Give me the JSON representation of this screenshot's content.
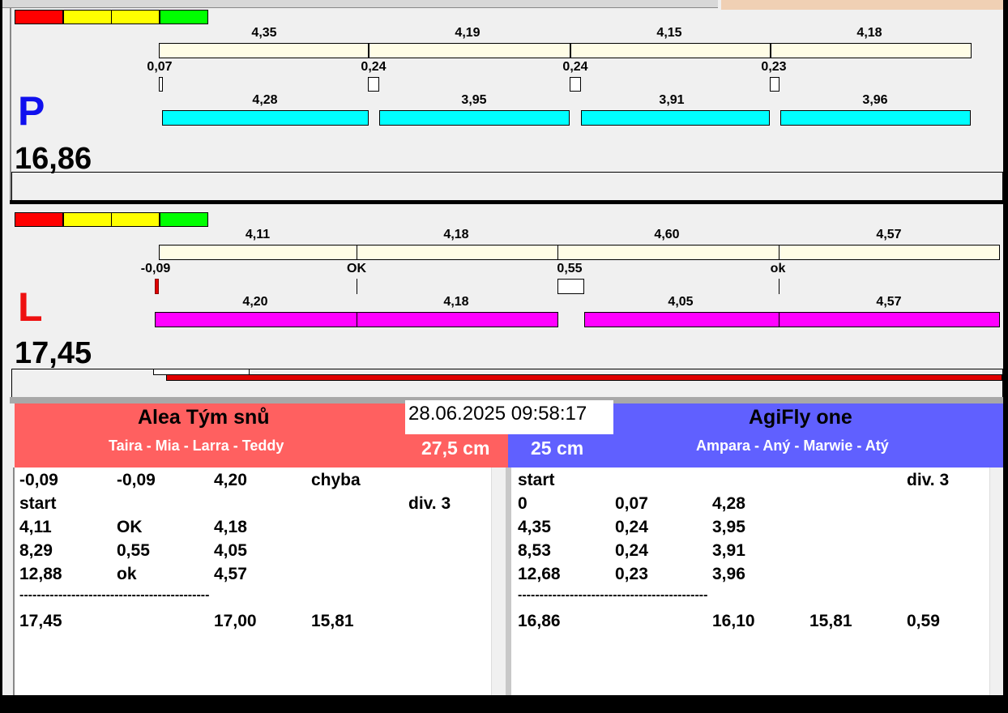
{
  "colors": {
    "red_team": "#ff6060",
    "blue_team": "#6060ff",
    "cyan": "#00ffff",
    "magenta": "#ff00ff",
    "track": "#fffde6",
    "peach": "#f0d0b4"
  },
  "signal_bar": [
    "red",
    "yellow",
    "yellow",
    "green"
  ],
  "p_lane": {
    "letter": "P",
    "total": "16,86",
    "top_labels": [
      "4,35",
      "4,19",
      "4,15",
      "4,18"
    ],
    "mid_labels": [
      "0,07",
      "0,24",
      "0,24",
      "0,23"
    ],
    "bottom_labels": [
      "4,28",
      "3,95",
      "3,91",
      "3,96"
    ]
  },
  "l_lane": {
    "letter": "L",
    "total": "17,45",
    "top_labels": [
      "4,11",
      "4,18",
      "4,60",
      "4,57"
    ],
    "mid_labels": [
      "-0,09",
      "OK",
      "0,55",
      "ok"
    ],
    "bottom_labels": [
      "4,20",
      "4,18",
      "4,05",
      "4,57"
    ]
  },
  "datetime": "28.06.2025 09:58:17",
  "left_team": {
    "name": "Alea Tým snů",
    "dogs": "Taira - Mia - Larra - Teddy",
    "height": "27,5 cm",
    "rows": [
      [
        "-0,09",
        "-0,09",
        "4,20",
        "chyba",
        ""
      ],
      [
        "start",
        "",
        "",
        "",
        "div.  3"
      ],
      [
        "4,11",
        "OK",
        "4,18",
        "",
        ""
      ],
      [
        "8,29",
        "0,55",
        "4,05",
        "",
        ""
      ],
      [
        "12,88",
        "ok",
        "4,57",
        "",
        ""
      ]
    ],
    "separator": "--------------------------------------------",
    "summary": [
      "17,45",
      "",
      "17,00",
      "15,81",
      ""
    ]
  },
  "right_team": {
    "name": "AgiFly one",
    "dogs": "Ampara - Aný - Marwie - Atý",
    "height": "25 cm",
    "rows": [
      [
        "start",
        "",
        "",
        "",
        "div.  3"
      ],
      [
        "0",
        "0,07",
        "4,28",
        "",
        ""
      ],
      [
        "4,35",
        "0,24",
        "3,95",
        "",
        ""
      ],
      [
        "8,53",
        "0,24",
        "3,91",
        "",
        ""
      ],
      [
        "12,68",
        "0,23",
        "3,96",
        "",
        ""
      ]
    ],
    "separator": "--------------------------------------------",
    "summary": [
      "16,86",
      "",
      "16,10",
      "15,81",
      "0,59"
    ]
  }
}
